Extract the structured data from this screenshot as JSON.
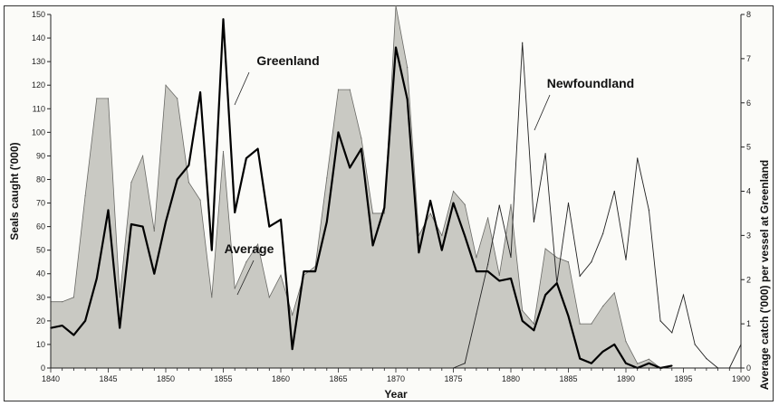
{
  "chart_data": {
    "type": "line",
    "xlabel": "Year",
    "ylabel": "Seals caught ('000)",
    "y2label": "Average catch ('000) per vessel at Greenland",
    "xlim": [
      1840,
      1900
    ],
    "ylim": [
      0,
      150
    ],
    "y2lim": [
      0,
      8
    ],
    "xticks": [
      1840,
      1845,
      1850,
      1855,
      1860,
      1865,
      1870,
      1875,
      1880,
      1885,
      1890,
      1895,
      1900
    ],
    "yticks": [
      0,
      10,
      20,
      30,
      40,
      50,
      60,
      70,
      80,
      90,
      100,
      110,
      120,
      130,
      140,
      150
    ],
    "y2ticks": [
      0,
      1,
      2,
      3,
      4,
      5,
      6,
      7,
      8
    ],
    "grid": false,
    "annotations": [
      {
        "text": "Greenland",
        "series": "Greenland"
      },
      {
        "text": "Newfoundland",
        "series": "Newfoundland"
      },
      {
        "text": "Average",
        "series": "Average"
      }
    ],
    "series": [
      {
        "name": "Greenland",
        "axis": "left",
        "x": [
          1840,
          1841,
          1842,
          1843,
          1844,
          1845,
          1846,
          1847,
          1848,
          1849,
          1850,
          1851,
          1852,
          1853,
          1854,
          1855,
          1856,
          1857,
          1858,
          1859,
          1860,
          1861,
          1862,
          1863,
          1864,
          1865,
          1866,
          1867,
          1868,
          1869,
          1870,
          1871,
          1872,
          1873,
          1874,
          1875,
          1876,
          1877,
          1878,
          1879,
          1880,
          1881,
          1882,
          1883,
          1884,
          1885,
          1886,
          1887,
          1888,
          1889,
          1890,
          1891,
          1892,
          1893,
          1894
        ],
        "y": [
          17,
          18,
          14,
          20,
          38,
          67,
          17,
          61,
          60,
          40,
          62,
          80,
          86,
          117,
          50,
          148,
          66,
          89,
          93,
          60,
          63,
          8,
          41,
          41,
          62,
          100,
          85,
          93,
          52,
          68,
          136,
          114,
          49,
          71,
          50,
          70,
          56,
          41,
          41,
          37,
          38,
          20,
          16,
          31,
          36,
          22,
          4,
          2,
          7,
          10,
          2,
          0,
          2,
          0,
          1
        ]
      },
      {
        "name": "Newfoundland",
        "axis": "left",
        "x": [
          1875,
          1876,
          1877,
          1878,
          1879,
          1880,
          1881,
          1882,
          1883,
          1884,
          1885,
          1886,
          1887,
          1888,
          1889,
          1890,
          1891,
          1892,
          1893,
          1894,
          1895,
          1896,
          1897,
          1898,
          1899,
          1900
        ],
        "y": [
          0,
          2,
          23,
          44,
          69,
          47,
          138,
          62,
          91,
          36,
          70,
          39,
          45,
          57,
          75,
          46,
          89,
          67,
          20,
          15,
          31,
          10,
          4,
          0,
          0,
          10
        ]
      },
      {
        "name": "Average",
        "axis": "right",
        "x": [
          1840,
          1841,
          1842,
          1843,
          1844,
          1845,
          1846,
          1847,
          1848,
          1849,
          1850,
          1851,
          1852,
          1853,
          1854,
          1855,
          1856,
          1857,
          1858,
          1859,
          1860,
          1861,
          1862,
          1863,
          1864,
          1865,
          1866,
          1867,
          1868,
          1869,
          1870,
          1871,
          1872,
          1873,
          1874,
          1875,
          1876,
          1877,
          1878,
          1879,
          1880,
          1881,
          1882,
          1883,
          1884,
          1885,
          1886,
          1887,
          1888,
          1889,
          1890,
          1891,
          1892,
          1893,
          1894
        ],
        "y": [
          1.5,
          1.5,
          1.6,
          3.9,
          6.1,
          6.1,
          1.6,
          4.2,
          4.8,
          3.1,
          6.4,
          6.1,
          4.2,
          3.8,
          1.6,
          4.9,
          1.8,
          2.4,
          2.8,
          1.6,
          2.1,
          1.2,
          2.1,
          2.3,
          4.3,
          6.3,
          6.3,
          5.2,
          3.5,
          3.5,
          8.2,
          6.8,
          3.0,
          3.5,
          3.0,
          4.0,
          3.7,
          2.5,
          3.4,
          2.1,
          3.7,
          1.3,
          1.0,
          2.7,
          2.5,
          2.4,
          1.0,
          1.0,
          1.4,
          1.7,
          0.6,
          0.1,
          0.2,
          0.0,
          0.0
        ]
      }
    ]
  }
}
